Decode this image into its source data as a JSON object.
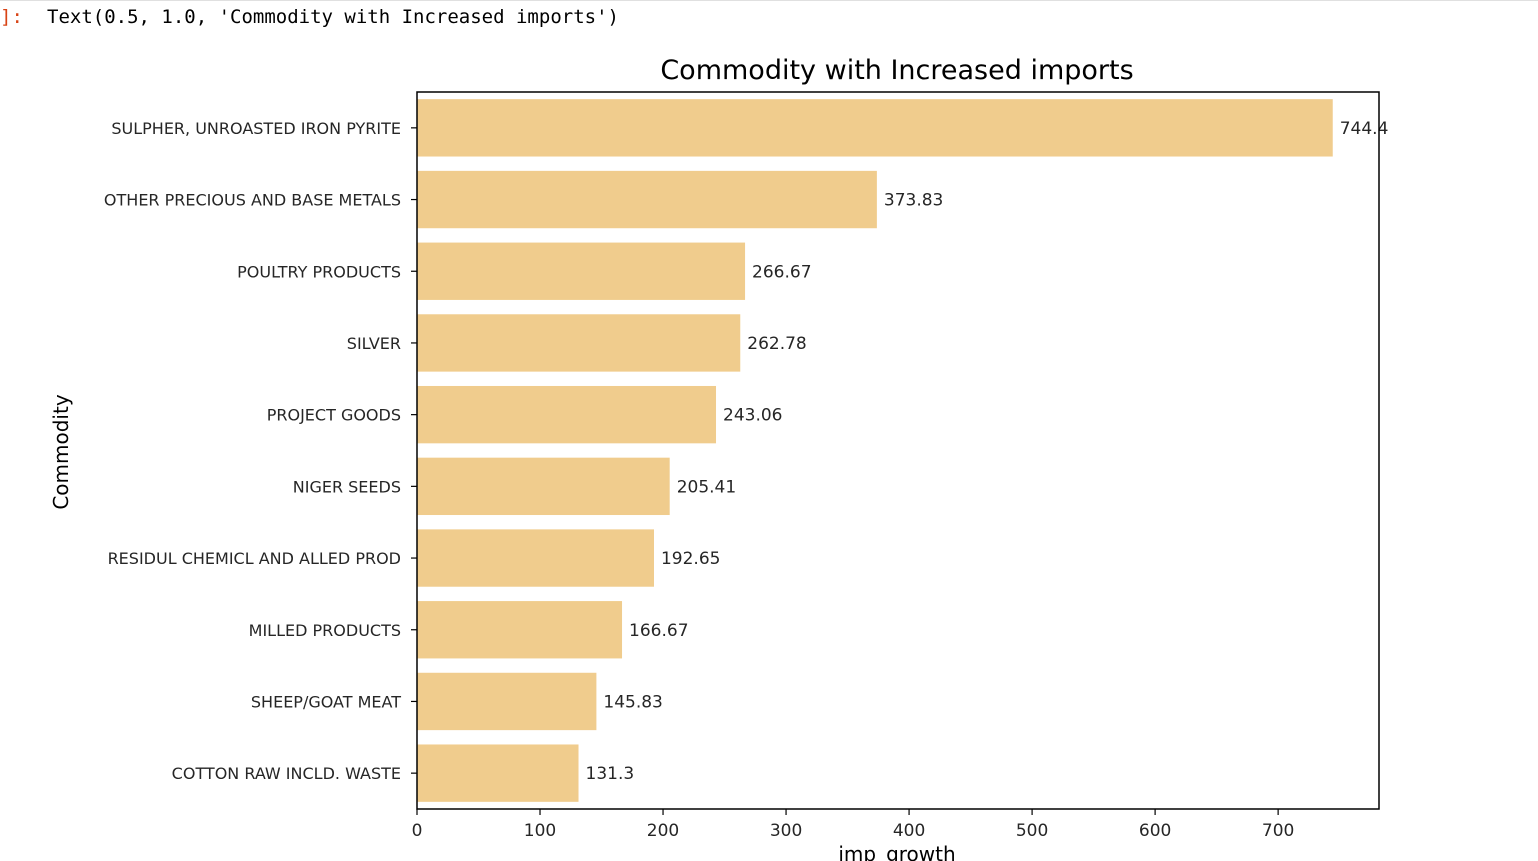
{
  "cell": {
    "prompt": "]:",
    "output_text": "Text(0.5, 1.0, 'Commodity with Increased imports')"
  },
  "chart_data": {
    "type": "bar",
    "orientation": "horizontal",
    "title": "Commodity with Increased imports",
    "xlabel": "imp_growth",
    "ylabel": "Commodity",
    "categories": [
      "SULPHER, UNROASTED IRON PYRITE",
      "OTHER PRECIOUS AND BASE METALS",
      "POULTRY PRODUCTS",
      "SILVER",
      "PROJECT GOODS",
      "NIGER SEEDS",
      "RESIDUL CHEMICL AND ALLED PROD",
      "MILLED PRODUCTS",
      "SHEEP/GOAT MEAT",
      "COTTON RAW INCLD. WASTE"
    ],
    "values": [
      744.4,
      373.83,
      266.67,
      262.78,
      243.06,
      205.41,
      192.65,
      166.67,
      145.83,
      131.3
    ],
    "value_labels": [
      "744.4",
      "373.83",
      "266.67",
      "262.78",
      "243.06",
      "205.41",
      "192.65",
      "166.67",
      "145.83",
      "131.3"
    ],
    "xticks": [
      0,
      100,
      200,
      300,
      400,
      500,
      600,
      700
    ],
    "xlim": [
      0,
      782
    ],
    "bar_color": "#f0cc8d",
    "grid": false,
    "legend": "none"
  }
}
